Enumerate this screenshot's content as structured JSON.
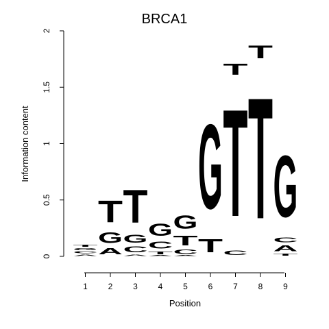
{
  "chart_data": {
    "type": "sequence-logo",
    "title": "BRCA1",
    "xlabel": "Position",
    "ylabel": "Information content",
    "ylim": [
      0,
      2
    ],
    "yticks": [
      0,
      0.5,
      1,
      1.5,
      2
    ],
    "ytick_labels": [
      "0",
      "0.5",
      "1",
      "1.5",
      "2"
    ],
    "positions": [
      1,
      2,
      3,
      4,
      5,
      6,
      7,
      8,
      9
    ],
    "colors": {
      "A": "#00cc00",
      "C": "#0000ee",
      "G": "#ffa500",
      "T": "#ff0000"
    },
    "stacks": [
      [
        {
          "letter": "A",
          "height": 0.02
        },
        {
          "letter": "C",
          "height": 0.03
        },
        {
          "letter": "G",
          "height": 0.03
        },
        {
          "letter": "T",
          "height": 0.03
        }
      ],
      [
        {
          "letter": "A",
          "height": 0.09
        },
        {
          "letter": "G",
          "height": 0.15
        },
        {
          "letter": "T",
          "height": 0.31
        }
      ],
      [
        {
          "letter": "A",
          "height": 0.02
        },
        {
          "letter": "C",
          "height": 0.08
        },
        {
          "letter": "G",
          "height": 0.11
        },
        {
          "letter": "T",
          "height": 0.47
        }
      ],
      [
        {
          "letter": "A",
          "height": 0.01
        },
        {
          "letter": "T",
          "height": 0.04
        },
        {
          "letter": "C",
          "height": 0.1
        },
        {
          "letter": "G",
          "height": 0.17
        }
      ],
      [
        {
          "letter": "A",
          "height": 0.01
        },
        {
          "letter": "C",
          "height": 0.06
        },
        {
          "letter": "T",
          "height": 0.14
        },
        {
          "letter": "G",
          "height": 0.19
        }
      ],
      [
        {
          "letter": "T",
          "height": 0.19
        },
        {
          "letter": "G",
          "height": 1.2
        }
      ],
      [
        {
          "letter": "C",
          "height": 0.06
        },
        {
          "letter": "T",
          "height": 1.52
        },
        {
          "letter": "T",
          "height": 0.16
        }
      ],
      [
        {
          "letter": "T",
          "height": 1.72
        },
        {
          "letter": "T",
          "height": 0.18
        }
      ],
      [
        {
          "letter": "T",
          "height": 0.03
        },
        {
          "letter": "A",
          "height": 0.08
        },
        {
          "letter": "C",
          "height": 0.07
        },
        {
          "letter": "G",
          "height": 0.87
        }
      ]
    ]
  }
}
